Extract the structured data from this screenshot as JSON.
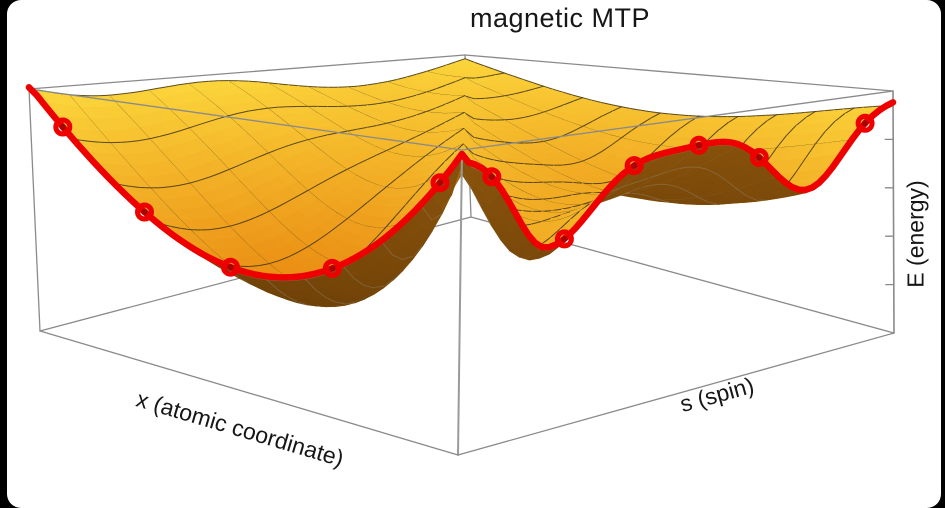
{
  "chart_data": {
    "type": "surface3d",
    "title": "magnetic MTP",
    "axes": {
      "x": "x (atomic coordinate)",
      "s": "s (spin)",
      "e": "E (energy)"
    },
    "description": "3D potential-energy surface E(x,s) of a magnetic moment tensor potential. Yellow top surface with dark mesh, brown where the underside is visible. A sharp cusp ridge runs along the diagonal x+s=1 peaking at the back corner. A red minimum-energy path with ring markers follows the front silhouette from the high left corner, down through the left valley, up over the sharp cusp at the front corner, across a double dip with an intermediate bump on the right, and up to the high right corner.",
    "surface": {
      "top_color_low": "#E8860F",
      "top_color_high": "#FBD33A",
      "underside_color_low": "#633906",
      "underside_color_high": "#8B540C",
      "mesh_color_top": "#3E3419",
      "mesh_color_under": "#968C78",
      "mesh_cells": 11,
      "box_color": "#8a8a8a",
      "profile_s0_edge": {
        "ends": 0.975,
        "min": 0.42,
        "min_at_x": 0.5
      },
      "profile_x1_edge": {
        "peak0": 0.96,
        "dip1": {
          "s": 0.2,
          "E": 0.62
        },
        "bump": {
          "s": 0.52,
          "E": 0.89
        },
        "dip2": {
          "s": 0.8,
          "E": 0.65
        },
        "peak1": 0.95
      },
      "crease": {
        "along": "x+s=1",
        "E_front_corner": 0.975,
        "E_middle": 0.75,
        "E_back_corner": 0.975
      }
    },
    "mep_path": {
      "name": "minimum energy path",
      "color": "#EE0000",
      "marker_style": "open-ring",
      "route": "along edge s=0 from x=0 to x=1, then along edge x=1 from s=0 to s=1",
      "endpoints": [
        {
          "x": 0,
          "s": 0,
          "E": 0.98
        },
        {
          "x": 1,
          "s": 1,
          "E": 0.95
        }
      ],
      "markers": [
        {
          "x": 0.075,
          "s": 0,
          "E": 0.88
        },
        {
          "x": 0.26,
          "s": 0,
          "E": 0.53
        },
        {
          "x": 0.46,
          "s": 0,
          "E": 0.42
        },
        {
          "x": 0.7,
          "s": 0,
          "E": 0.55
        },
        {
          "x": 0.95,
          "s": 0,
          "E": 0.88
        },
        {
          "x": 1,
          "s": 0.07,
          "E": 0.79
        },
        {
          "x": 1,
          "s": 0.24,
          "E": 0.66
        },
        {
          "x": 1,
          "s": 0.4,
          "E": 0.8
        },
        {
          "x": 1,
          "s": 0.55,
          "E": 0.89
        },
        {
          "x": 1,
          "s": 0.69,
          "E": 0.81
        },
        {
          "x": 1,
          "s": 0.935,
          "E": 0.81
        }
      ],
      "saddle_cusp": {
        "x": 1,
        "s": 0,
        "E": 0.975
      }
    },
    "e_axis_ticks": 4
  }
}
